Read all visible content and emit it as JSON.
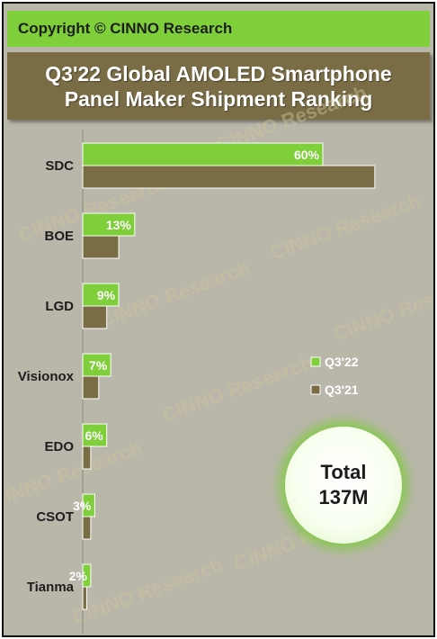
{
  "header": {
    "copyright": "Copyright © CINNO Research",
    "title_line1": "Q3'22 Global AMOLED Smartphone",
    "title_line2": "Panel Maker Shipment Ranking"
  },
  "total": {
    "label": "Total",
    "value": "137M"
  },
  "watermark": "CINNO Research",
  "colors": {
    "background": "#b9b6aa",
    "copyright_bar": "#7fcf3a",
    "title_bar": "#7a6d46",
    "q3_22": "#7fcf3a",
    "q3_21": "#7a6d46"
  },
  "chart_data": {
    "type": "bar",
    "orientation": "horizontal",
    "categories": [
      "SDC",
      "BOE",
      "LGD",
      "Visionox",
      "EDO",
      "CSOT",
      "Tianma"
    ],
    "series": [
      {
        "name": "Q3'22",
        "values": [
          60,
          13,
          9,
          7,
          6,
          3,
          2
        ],
        "labels": [
          "60%",
          "13%",
          "9%",
          "7%",
          "6%",
          "3%",
          "2%"
        ]
      },
      {
        "name": "Q3'21",
        "values": [
          73,
          9,
          6,
          4,
          2,
          2,
          1
        ]
      }
    ],
    "xlim": [
      0,
      100
    ],
    "legend": "right",
    "grid": false
  }
}
